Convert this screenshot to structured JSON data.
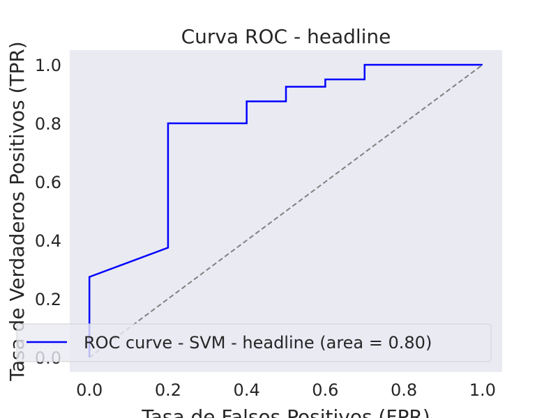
{
  "chart_data": {
    "type": "line",
    "title": "Curva ROC - headline",
    "xlabel": "Tasa de Falsos Positivos (FPR)",
    "ylabel": "Tasa de Verdaderos Positivos (TPR)",
    "xlim": [
      -0.05,
      1.05
    ],
    "ylim": [
      -0.05,
      1.05
    ],
    "xticks": [
      "0.0",
      "0.2",
      "0.4",
      "0.6",
      "0.8",
      "1.0"
    ],
    "yticks": [
      "0.0",
      "0.2",
      "0.4",
      "0.6",
      "0.8",
      "1.0"
    ],
    "grid": false,
    "legend_position": "lower-right",
    "series": [
      {
        "name": "ROC curve - SVM - headline (area = 0.80)",
        "color": "#0000ff",
        "x": [
          0.0,
          0.0,
          0.0,
          0.2,
          0.2,
          0.4,
          0.4,
          0.5,
          0.5,
          0.6,
          0.6,
          0.7,
          0.7,
          1.0
        ],
        "y": [
          0.0,
          0.025,
          0.275,
          0.375,
          0.8,
          0.8,
          0.875,
          0.875,
          0.925,
          0.925,
          0.95,
          0.95,
          1.0,
          1.0
        ]
      },
      {
        "name": "",
        "color": "#808080",
        "style": "dashed",
        "x": [
          0.0,
          1.0
        ],
        "y": [
          0.0,
          1.0
        ]
      }
    ]
  }
}
